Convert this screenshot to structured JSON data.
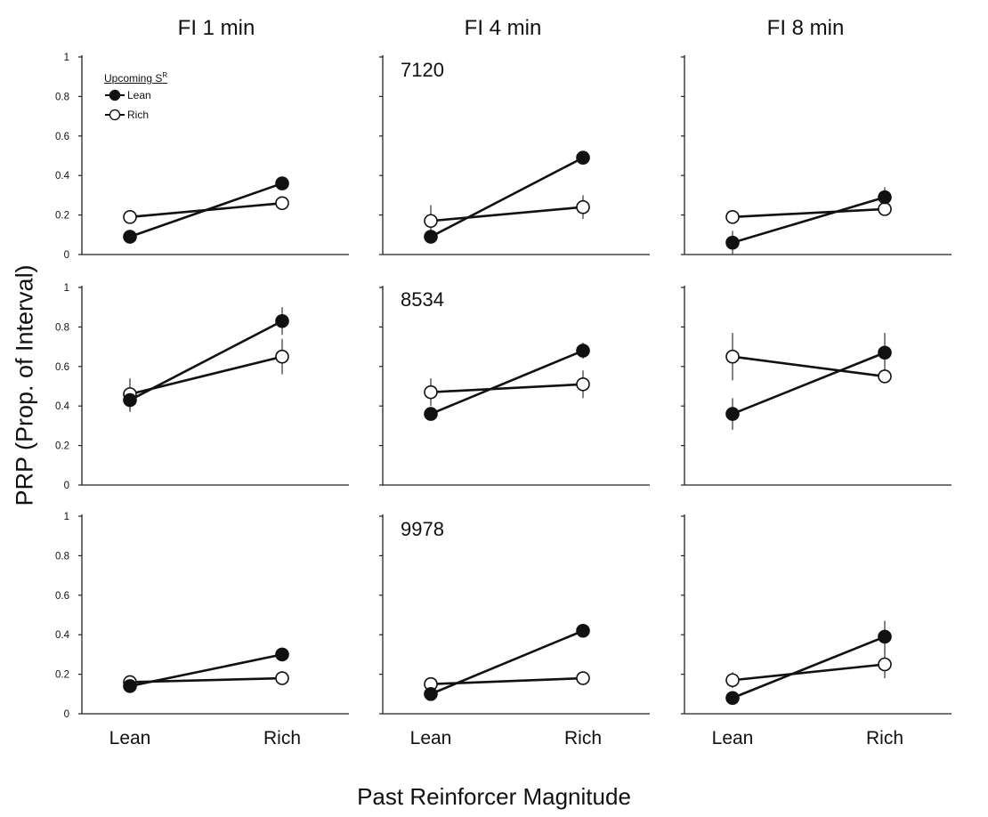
{
  "columns": [
    "FI 1 min",
    "FI 4 min",
    "FI 8 min"
  ],
  "subjects": [
    "7120",
    "8534",
    "9978"
  ],
  "y_axis_title": "PRP (Prop. of Interval)",
  "x_axis_title": "Past Reinforcer Magnitude",
  "legend": {
    "title": "Upcoming S",
    "title_sup": "R",
    "items": [
      {
        "name": "Lean",
        "color": "#111111",
        "fill": "#111111"
      },
      {
        "name": "Rich",
        "color": "#111111",
        "fill": "#ffffff"
      }
    ]
  },
  "chart_data": {
    "type": "line",
    "categories": [
      "Lean",
      "Rich"
    ],
    "y_ticks": [
      "0",
      "0.2",
      "0.4",
      "0.6",
      "0.8",
      "1"
    ],
    "ylim": [
      0,
      1
    ],
    "panels": [
      {
        "subject": "7120",
        "condition": "FI 1 min",
        "series": [
          {
            "name": "Lean",
            "values": [
              0.09,
              0.36
            ],
            "errors": [
              0.0,
              0.02
            ]
          },
          {
            "name": "Rich",
            "values": [
              0.19,
              0.26
            ],
            "errors": [
              0.03,
              0.0
            ]
          }
        ]
      },
      {
        "subject": "7120",
        "condition": "FI 4 min",
        "series": [
          {
            "name": "Lean",
            "values": [
              0.09,
              0.49
            ],
            "errors": [
              0.0,
              0.0
            ]
          },
          {
            "name": "Rich",
            "values": [
              0.17,
              0.24
            ],
            "errors": [
              0.08,
              0.06
            ]
          }
        ]
      },
      {
        "subject": "7120",
        "condition": "FI 8 min",
        "series": [
          {
            "name": "Lean",
            "values": [
              0.06,
              0.29
            ],
            "errors": [
              0.06,
              0.05
            ]
          },
          {
            "name": "Rich",
            "values": [
              0.19,
              0.23
            ],
            "errors": [
              0.0,
              0.0
            ]
          }
        ]
      },
      {
        "subject": "8534",
        "condition": "FI 1 min",
        "series": [
          {
            "name": "Lean",
            "values": [
              0.43,
              0.83
            ],
            "errors": [
              0.06,
              0.07
            ]
          },
          {
            "name": "Rich",
            "values": [
              0.46,
              0.65
            ],
            "errors": [
              0.08,
              0.09
            ]
          }
        ]
      },
      {
        "subject": "8534",
        "condition": "FI 4 min",
        "series": [
          {
            "name": "Lean",
            "values": [
              0.36,
              0.68
            ],
            "errors": [
              0.0,
              0.04
            ]
          },
          {
            "name": "Rich",
            "values": [
              0.47,
              0.51
            ],
            "errors": [
              0.07,
              0.07
            ]
          }
        ]
      },
      {
        "subject": "8534",
        "condition": "FI 8 min",
        "series": [
          {
            "name": "Lean",
            "values": [
              0.36,
              0.67
            ],
            "errors": [
              0.08,
              0.1
            ]
          },
          {
            "name": "Rich",
            "values": [
              0.65,
              0.55
            ],
            "errors": [
              0.12,
              0.0
            ]
          }
        ]
      },
      {
        "subject": "9978",
        "condition": "FI 1 min",
        "series": [
          {
            "name": "Lean",
            "values": [
              0.14,
              0.3
            ],
            "errors": [
              0.0,
              0.0
            ]
          },
          {
            "name": "Rich",
            "values": [
              0.16,
              0.18
            ],
            "errors": [
              0.0,
              0.0
            ]
          }
        ]
      },
      {
        "subject": "9978",
        "condition": "FI 4 min",
        "series": [
          {
            "name": "Lean",
            "values": [
              0.1,
              0.42
            ],
            "errors": [
              0.0,
              0.03
            ]
          },
          {
            "name": "Rich",
            "values": [
              0.15,
              0.18
            ],
            "errors": [
              0.0,
              0.03
            ]
          }
        ]
      },
      {
        "subject": "9978",
        "condition": "FI 8 min",
        "series": [
          {
            "name": "Lean",
            "values": [
              0.08,
              0.39
            ],
            "errors": [
              0.0,
              0.08
            ]
          },
          {
            "name": "Rich",
            "values": [
              0.17,
              0.25
            ],
            "errors": [
              0.04,
              0.07
            ]
          }
        ]
      }
    ]
  }
}
